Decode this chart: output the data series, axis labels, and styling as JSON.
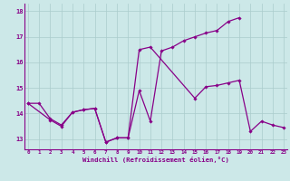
{
  "xlabel": "Windchill (Refroidissement éolien,°C)",
  "background_color": "#cce8e8",
  "grid_color": "#aacccc",
  "line_color": "#880088",
  "x_values": [
    0,
    1,
    2,
    3,
    4,
    5,
    6,
    7,
    8,
    9,
    10,
    11,
    12,
    13,
    14,
    15,
    16,
    17,
    18,
    19,
    20,
    21,
    22,
    23
  ],
  "series1": [
    14.4,
    14.4,
    null,
    null,
    null,
    null,
    null,
    null,
    null,
    null,
    null,
    null,
    null,
    null,
    null,
    null,
    null,
    null,
    null,
    null,
    null,
    null,
    null,
    null
  ],
  "series2_x": [
    0,
    1,
    2,
    3,
    4,
    5,
    6,
    7,
    8,
    9,
    10,
    11,
    12,
    13,
    14,
    15,
    16,
    17,
    18,
    19
  ],
  "series2_y": [
    14.4,
    14.4,
    13.8,
    13.55,
    14.05,
    14.15,
    14.2,
    12.88,
    13.05,
    13.05,
    14.9,
    13.7,
    16.45,
    16.6,
    16.85,
    17.0,
    17.15,
    17.25,
    17.6,
    17.75
  ],
  "series3_x": [
    0,
    2,
    3,
    4,
    5,
    6,
    7,
    8,
    9,
    10,
    11,
    15,
    16,
    17,
    18,
    19,
    20,
    21,
    22,
    23
  ],
  "series3_y": [
    14.4,
    13.75,
    13.5,
    14.05,
    14.15,
    14.2,
    12.88,
    13.05,
    13.05,
    16.5,
    16.6,
    14.6,
    15.05,
    15.1,
    15.2,
    15.3,
    13.3,
    13.7,
    13.55,
    13.45
  ],
  "ylim": [
    12.6,
    18.3
  ],
  "yticks": [
    13,
    14,
    15,
    16,
    17,
    18
  ],
  "xticks": [
    0,
    1,
    2,
    3,
    4,
    5,
    6,
    7,
    8,
    9,
    10,
    11,
    12,
    13,
    14,
    15,
    16,
    17,
    18,
    19,
    20,
    21,
    22,
    23
  ]
}
